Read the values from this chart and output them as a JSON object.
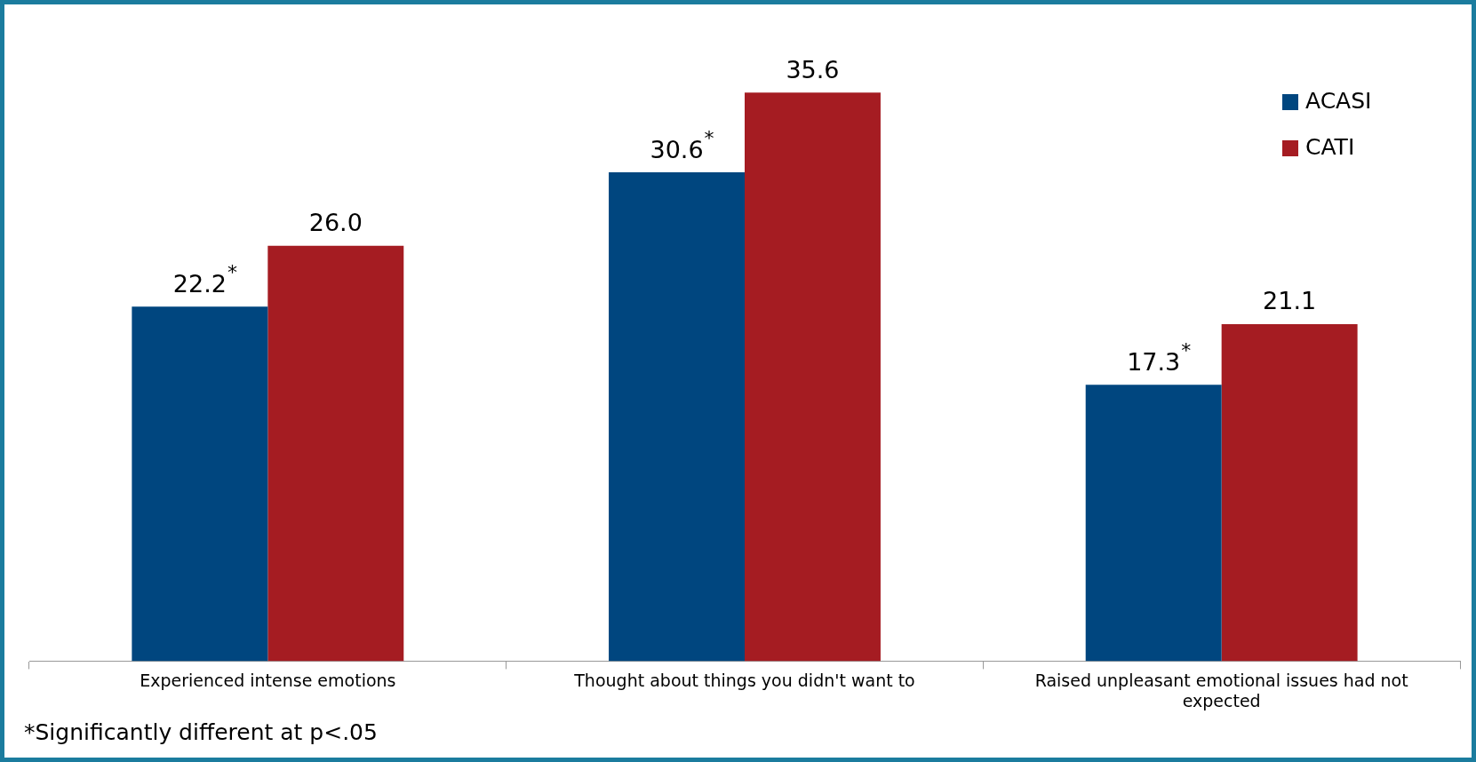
{
  "chart_data": {
    "type": "bar",
    "categories": [
      "Experienced intense emotions",
      "Thought about things you didn't want to",
      "Raised unpleasant emotional issues had not expected"
    ],
    "series": [
      {
        "name": "ACASI",
        "color": "#00467f",
        "values": [
          22.2,
          30.6,
          17.3
        ],
        "value_labels": [
          "22.2$^{*}$",
          "30.6$^{*}$",
          "17.3$^{*}$"
        ]
      },
      {
        "name": "CATI",
        "color": "#a51c22",
        "values": [
          26.0,
          35.6,
          21.1
        ],
        "value_labels": [
          "26.0",
          "35.6",
          "21.1"
        ]
      }
    ],
    "grid": false,
    "legend": "top right",
    "annotations": [
      "*Significantly different at p<.05"
    ]
  }
}
